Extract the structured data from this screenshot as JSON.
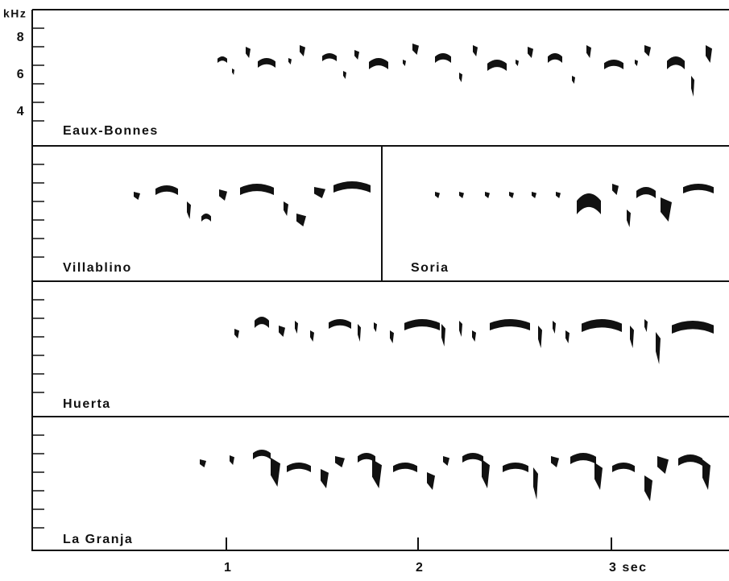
{
  "y_axis": {
    "unit": "kHz",
    "ticks": [
      "8",
      "6",
      "4"
    ]
  },
  "x_axis": {
    "ticks": [
      "1",
      "2",
      "3 sec"
    ]
  },
  "panels": [
    {
      "label": "Eaux-Bonnes"
    },
    {
      "label": "Villablino"
    },
    {
      "label": "Soria"
    },
    {
      "label": "Huerta"
    },
    {
      "label": "La Granja"
    }
  ]
}
